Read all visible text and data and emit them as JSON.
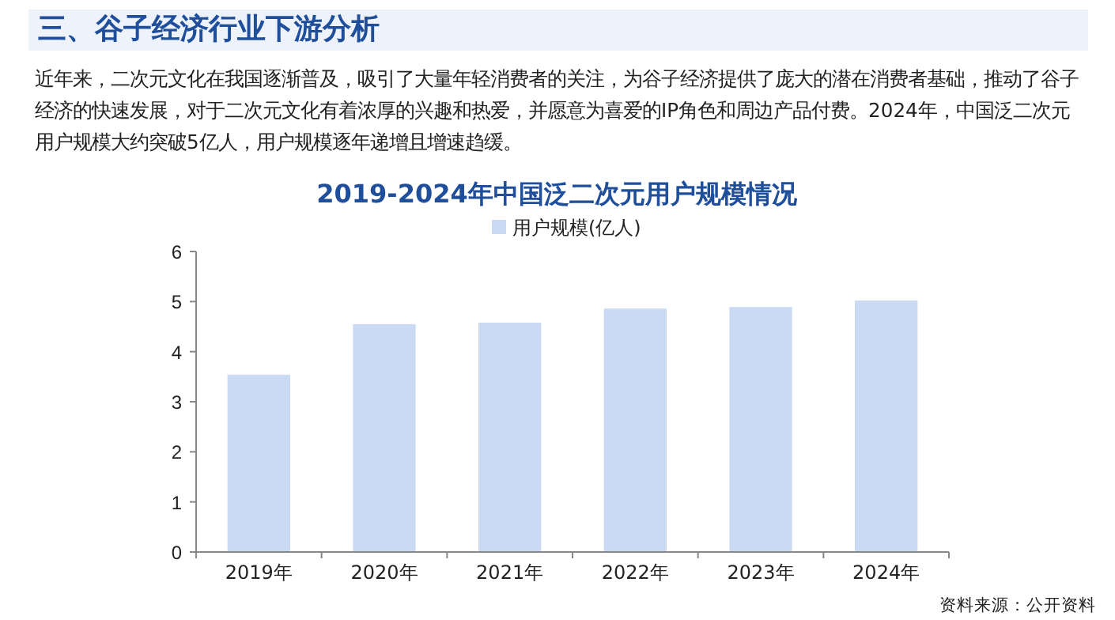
{
  "chart_data": {
    "type": "bar",
    "title": "2019-2024年中国泛二次元用户规模情况",
    "annotations": [
      "三、谷子经济行业下游分析",
      "近年来，二次元文化在我国逐渐普及，吸引了大量年轻消费者的关注，为谷子经济提供了庞大的潜在消费者基础，推动了谷子经济的快速发展，对于二次元文化有着浓厚的兴趣和热爱，并愿意为喜爱的IP角色和周边产品付费。2024年，中国泛二次元用户规模大约突破5亿人，用户规模逐年递增且增速趋缓。",
      "资料来源：公开资料"
    ],
    "categories": [
      "2019年",
      "2020年",
      "2021年",
      "2022年",
      "2023年",
      "2024年"
    ],
    "series": [
      {
        "name": "用户规模(亿人)",
        "color": "#c9daf2",
        "values": [
          3.54,
          4.55,
          4.58,
          4.86,
          4.89,
          5.02
        ]
      }
    ],
    "ylim": [
      0,
      6
    ],
    "yticks": [
      0,
      1,
      2,
      3,
      4,
      5,
      6
    ],
    "grid": false,
    "legend": "top"
  }
}
